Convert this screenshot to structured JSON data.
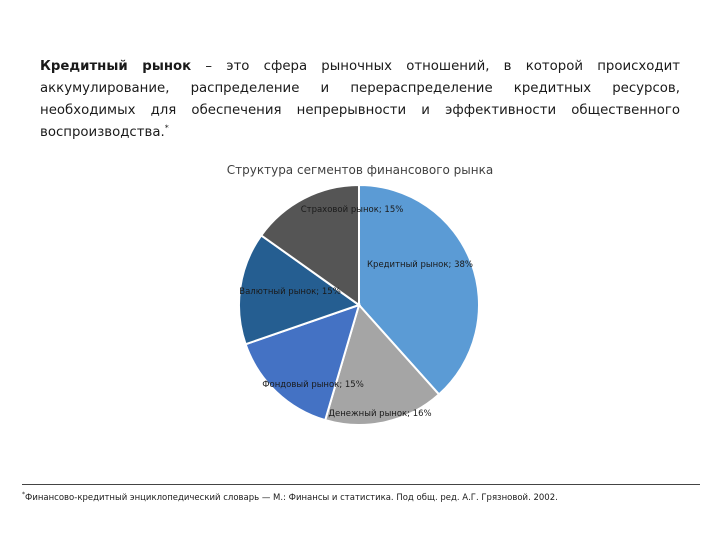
{
  "paragraph": {
    "term": "Кредитный рынок",
    "text": " – это сфера рыночных отношений, в которой происходит аккумулирование, распределение и перераспределение кредитных ресурсов, необходимых для обеспечения непрерывности и эффективности общественного воспроизводства.",
    "footnote_mark": "*"
  },
  "chart_data": {
    "type": "pie",
    "title": "Структура сегментов финансового рынка",
    "slices": [
      {
        "label": "Кредитный рынок; 38%",
        "name": "Кредитный рынок",
        "value": 38,
        "color": "#5B9BD5"
      },
      {
        "label": "Денежный рынок; 16%",
        "name": "Денежный рынок",
        "value": 16,
        "color": "#A5A5A5"
      },
      {
        "label": "Фондовый рынок; 15%",
        "name": "Фондовый рынок",
        "value": 15,
        "color": "#4472C4"
      },
      {
        "label": "Валютный рынок; 15%",
        "name": "Валютный рынок",
        "value": 15,
        "color": "#255E91"
      },
      {
        "label": "Страховой рынок; 15%",
        "name": "Страховой рынок",
        "value": 15,
        "color": "#555555"
      }
    ]
  },
  "footnote": {
    "mark": "*",
    "text": "Финансово-кредитный энциклопедический словарь — М.: Финансы и статистика. Под общ. ред. А.Г. Грязновой. 2002."
  }
}
